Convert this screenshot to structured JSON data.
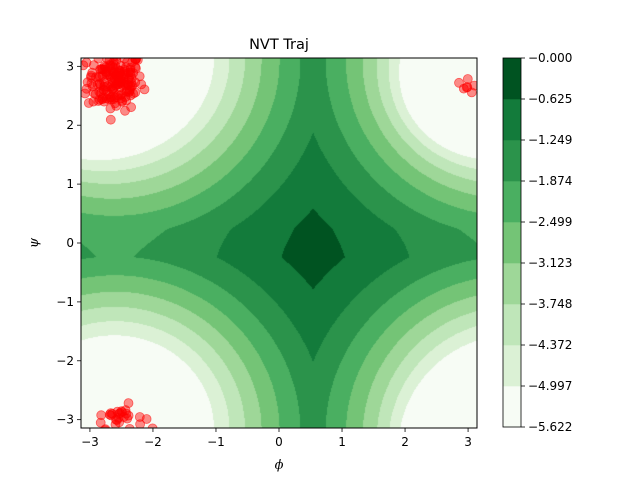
{
  "chart_data": {
    "type": "contour",
    "title": "NVT Traj",
    "xlabel": "ϕ",
    "ylabel": "ψ",
    "xlim": [
      -3.14159,
      3.14159
    ],
    "ylim": [
      -3.14159,
      3.14159
    ],
    "xticks": [
      -3,
      -2,
      -1,
      0,
      1,
      2,
      3
    ],
    "yticks": [
      -3,
      -2,
      -1,
      0,
      1,
      2,
      3
    ],
    "tick_labels": {
      "x": [
        "−3",
        "−2",
        "−1",
        "0",
        "1",
        "2",
        "3"
      ],
      "y": [
        "−3",
        "−2",
        "−1",
        "0",
        "1",
        "2",
        "3"
      ]
    },
    "colorbar": {
      "levels": [
        -5.622,
        -4.997,
        -4.372,
        -3.748,
        -3.123,
        -2.499,
        -1.874,
        -1.249,
        -0.625,
        -0.0
      ],
      "labels": [
        "−5.622",
        "−4.997",
        "−4.372",
        "−3.748",
        "−3.123",
        "−2.499",
        "−1.874",
        "−1.249",
        "−0.625",
        "−0.000"
      ],
      "colors": [
        "#f7fcf5",
        "#dbf1d5",
        "#bfe6b9",
        "#9ed798",
        "#74c476",
        "#4aaf61",
        "#2b934b",
        "#137b3b",
        "#005321"
      ]
    },
    "scatter": {
      "color": "#ff0000",
      "clusters": [
        {
          "cx": -2.6,
          "cy": 2.75,
          "sx": 0.22,
          "sy": 0.25,
          "n": 170
        },
        {
          "cx": -2.55,
          "cy": -2.95,
          "sx": 0.2,
          "sy": 0.1,
          "n": 30
        },
        {
          "cx": 3.0,
          "cy": 2.65,
          "sx": 0.08,
          "sy": 0.06,
          "n": 7
        }
      ]
    },
    "grid": false,
    "legend": "none"
  }
}
